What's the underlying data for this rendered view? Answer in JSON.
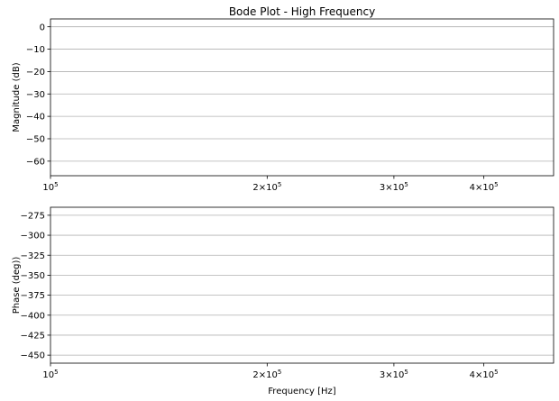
{
  "figure": {
    "title": "Bode Plot - High Frequency"
  },
  "chart_data": [
    {
      "type": "line",
      "title": "Bode Plot - High Frequency",
      "xlabel": "",
      "ylabel": "Magnitude (dB)",
      "xscale": "log",
      "xlim": [
        100000,
        500000
      ],
      "ylim": [
        -66.5,
        3.5
      ],
      "yticks": [
        0,
        -10,
        -20,
        -30,
        -40,
        -50,
        -60
      ],
      "xticks": [
        {
          "value": 100000,
          "mantissa": "",
          "base": "10",
          "exp": "5"
        },
        {
          "value": 200000,
          "mantissa": "2×",
          "base": "10",
          "exp": "5"
        },
        {
          "value": 300000,
          "mantissa": "3×",
          "base": "10",
          "exp": "5"
        },
        {
          "value": 400000,
          "mantissa": "4×",
          "base": "10",
          "exp": "5"
        }
      ],
      "grid": "y",
      "series": []
    },
    {
      "type": "line",
      "title": "",
      "xlabel": "Frequency [Hz]",
      "ylabel": "Phase (deg))",
      "xscale": "log",
      "xlim": [
        100000,
        500000
      ],
      "ylim": [
        -460,
        -265
      ],
      "yticks": [
        -275,
        -300,
        -325,
        -350,
        -375,
        -400,
        -425,
        -450
      ],
      "xticks": [
        {
          "value": 100000,
          "mantissa": "",
          "base": "10",
          "exp": "5"
        },
        {
          "value": 200000,
          "mantissa": "2×",
          "base": "10",
          "exp": "5"
        },
        {
          "value": 300000,
          "mantissa": "3×",
          "base": "10",
          "exp": "5"
        },
        {
          "value": 400000,
          "mantissa": "4×",
          "base": "10",
          "exp": "5"
        }
      ],
      "grid": "y",
      "series": []
    }
  ]
}
